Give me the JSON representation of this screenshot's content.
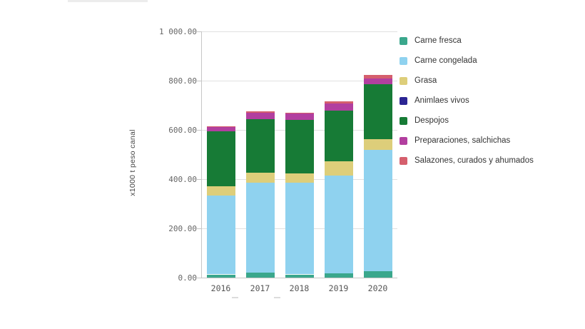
{
  "chart": {
    "y_axis_title": "x1000 t peso canal",
    "tick_values": [
      0,
      200,
      400,
      600,
      800,
      1000
    ],
    "tick_labels": [
      "0.00",
      "200.00",
      "400.00",
      "600.00",
      "800.00",
      "1 000.00"
    ],
    "axis_color": "#c6c6c6",
    "grid_color": "#e0e0e0",
    "tick_text_color": "#666666",
    "x_text_color": "#555555"
  },
  "chart_data": {
    "type": "bar",
    "stacked": true,
    "title": "",
    "xlabel": "",
    "ylabel": "x1000 t peso canal",
    "ylim": [
      0,
      1000
    ],
    "grid": true,
    "legend_position": "right",
    "categories": [
      "2016",
      "2017",
      "2018",
      "2019",
      "2020"
    ],
    "series": [
      {
        "name": "Carne fresca",
        "color": "#3aa78c",
        "values": [
          13,
          19,
          13,
          17,
          27
        ]
      },
      {
        "name": "Carne congelada",
        "color": "#8fd2ef",
        "values": [
          320,
          365,
          371,
          397,
          491
        ]
      },
      {
        "name": "Grasa",
        "color": "#ddce7a",
        "values": [
          37,
          42,
          38,
          58,
          43
        ]
      },
      {
        "name": "Animlaes vivos",
        "color": "#2b2593",
        "values": [
          0,
          0,
          0,
          0,
          0
        ]
      },
      {
        "name": "Despojos",
        "color": "#177b36",
        "values": [
          222,
          216,
          218,
          204,
          222
        ]
      },
      {
        "name": "Preparaciones, salchichas",
        "color": "#b23f9f",
        "values": [
          20,
          28,
          26,
          31,
          25
        ]
      },
      {
        "name": "Salazones, curados y ahumados",
        "color": "#d55f6d",
        "values": [
          3,
          5,
          4,
          9,
          13
        ]
      }
    ],
    "totals": [
      615,
      675,
      670,
      716,
      821
    ]
  }
}
